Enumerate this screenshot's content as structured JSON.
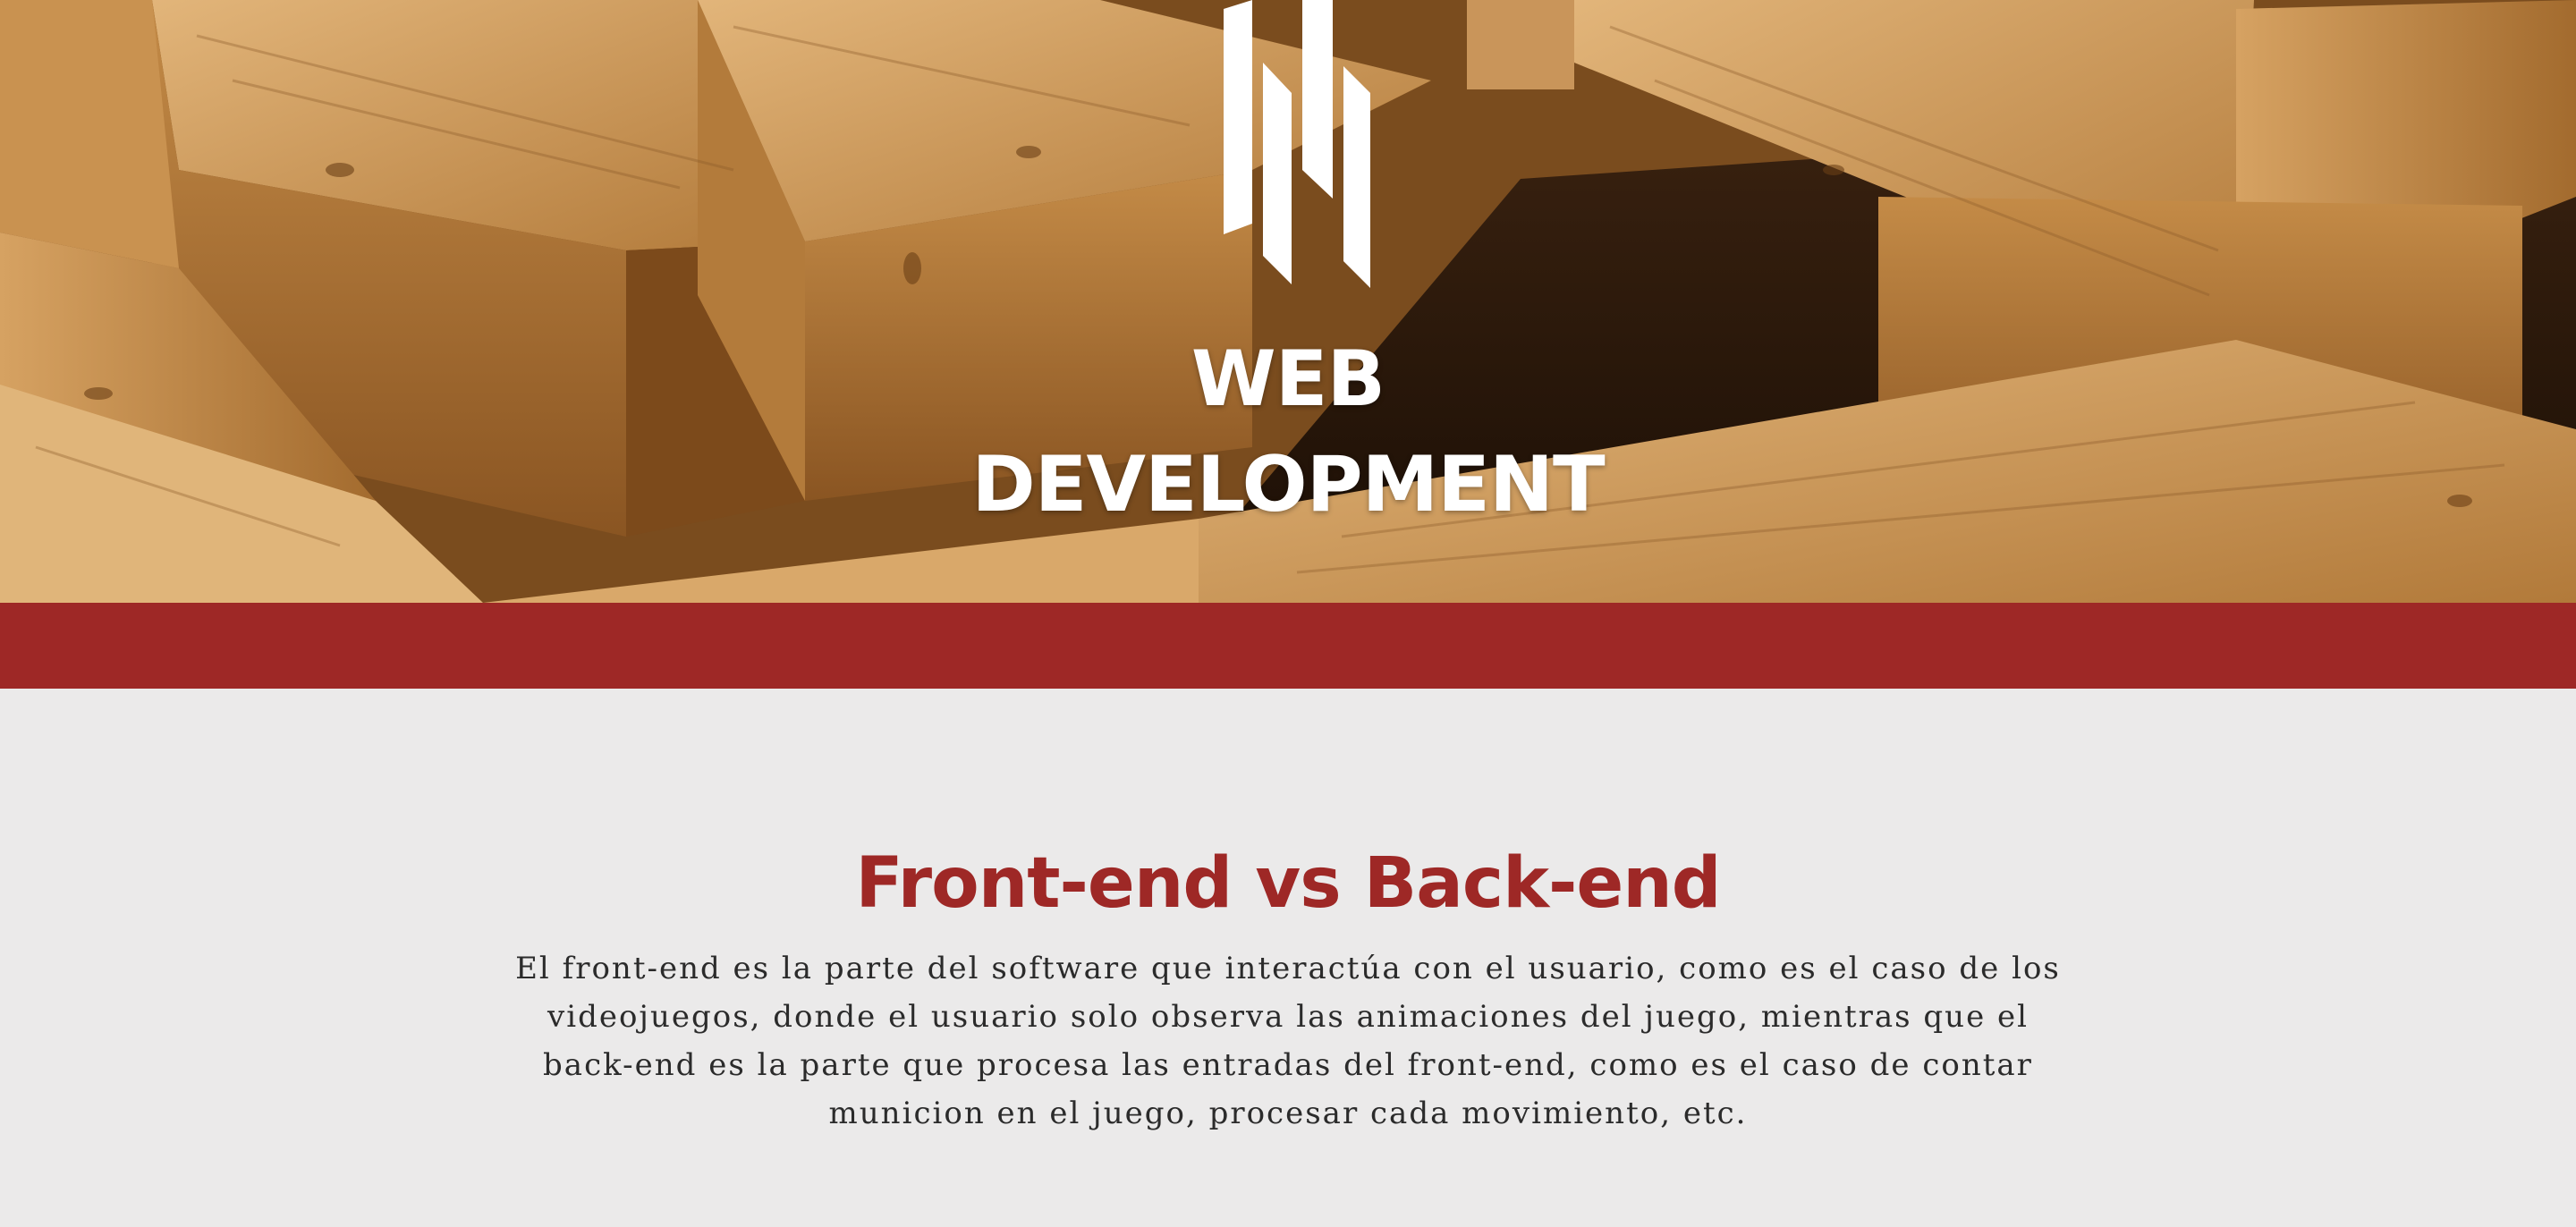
{
  "hero": {
    "logo_icon": "bars-logo-icon",
    "title_line1": "WEB",
    "title_line2": "DEVELOPMENT",
    "background": "wooden-blocks-image"
  },
  "colors": {
    "accent": "#9e2826",
    "background": "#ebeaea",
    "hero_text": "#ffffff",
    "body_text": "#2b2b2b"
  },
  "section": {
    "title": "Front-end vs Back-end",
    "body": "El front-end es la parte del software que interactúa con el usuario, como es el caso de los videojuegos, donde el usuario solo observa las animaciones del juego, mientras que el back-end es la parte que procesa las entradas del front-end, como es el caso de contar municion en el juego, procesar cada movimiento, etc."
  }
}
